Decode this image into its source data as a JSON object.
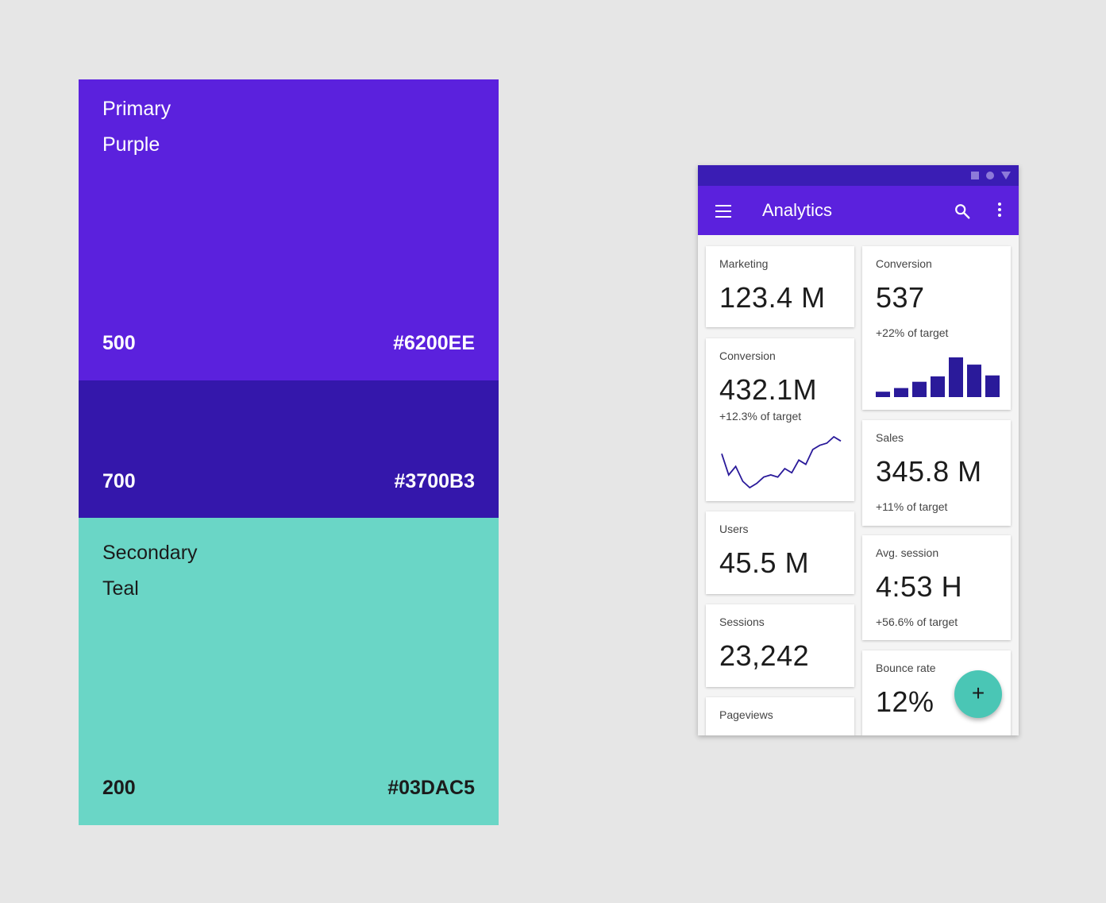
{
  "palette": {
    "primary": {
      "name_line1": "Primary",
      "name_line2": "Purple",
      "shade_500": "500",
      "hex_500": "#6200EE",
      "shade_700": "700",
      "hex_700": "#3700B3"
    },
    "secondary": {
      "name_line1": "Secondary",
      "name_line2": "Teal",
      "shade_200": "200",
      "hex_200": "#03DAC5"
    }
  },
  "colors": {
    "primary_500": "#6200EE",
    "primary_700": "#3700B3",
    "secondary_200": "#03DAC5"
  },
  "app": {
    "title": "Analytics",
    "icons": [
      "menu-icon",
      "search-icon",
      "more-vert-icon",
      "add-icon"
    ],
    "fab_label": "+"
  },
  "cards": {
    "marketing": {
      "label": "Marketing",
      "value": "123.4 M"
    },
    "conversion_left": {
      "label": "Conversion",
      "value": "432.1M",
      "sub": "+12.3% of target"
    },
    "users": {
      "label": "Users",
      "value": "45.5 M"
    },
    "sessions": {
      "label": "Sessions",
      "value": "23,242"
    },
    "pageviews": {
      "label": "Pageviews"
    },
    "conversion_right": {
      "label": "Conversion",
      "value": "537",
      "sub": "+22% of target"
    },
    "sales": {
      "label": "Sales",
      "value": "345.8 M",
      "sub": "+11% of target"
    },
    "avg_session": {
      "label": "Avg. session",
      "value": "4:53 H",
      "sub": "+56.6% of target"
    },
    "bounce_rate": {
      "label": "Bounce rate",
      "value": "12%"
    }
  },
  "mini_charts": {
    "conversion_line": {
      "type": "line",
      "values": [
        36,
        16,
        24,
        10,
        4,
        8,
        14,
        16,
        14,
        22,
        18,
        30,
        26,
        40,
        44,
        46,
        52,
        48
      ]
    },
    "conversion_bars": {
      "type": "bar",
      "values": [
        6,
        10,
        17,
        23,
        44,
        36,
        24
      ]
    }
  }
}
